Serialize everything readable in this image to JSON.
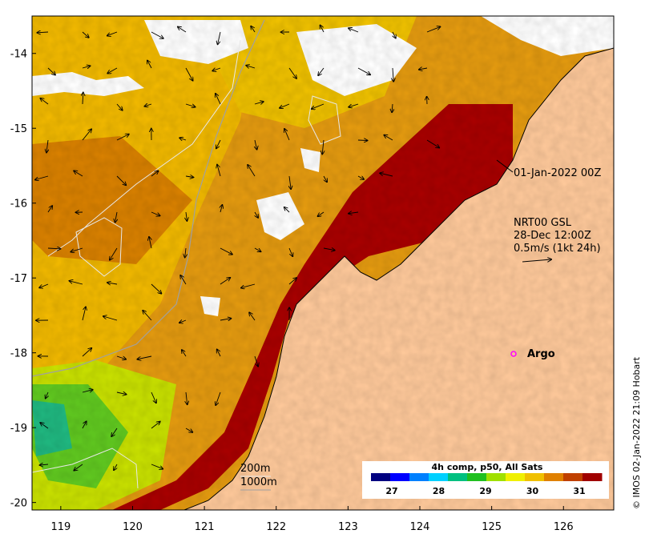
{
  "map": {
    "lon_ticks": [
      "119",
      "120",
      "121",
      "122",
      "123",
      "124",
      "125",
      "126"
    ],
    "lat_ticks": [
      "-14",
      "-15",
      "-16",
      "-17",
      "-18",
      "-19",
      "-20"
    ],
    "lon_range": [
      118.6,
      126.7
    ],
    "lat_range": [
      -20.1,
      -13.5
    ]
  },
  "annotations": {
    "date_label": "01-Jan-2022 00Z",
    "current_line1": "NRT00 GSL",
    "current_line2": "28-Dec 12:00Z",
    "current_line3": "0.5m/s (1kt 24h)",
    "argo_label": "Argo",
    "depth_200": "200m",
    "depth_1000": "1000m"
  },
  "colorbar": {
    "title": "4h comp, p50, All Sats",
    "ticks": [
      "27",
      "28",
      "29",
      "30",
      "31"
    ],
    "colors": [
      "#000080",
      "#0000ff",
      "#0080ff",
      "#00d0ff",
      "#00c080",
      "#20c020",
      "#a0e000",
      "#f0f000",
      "#f0c000",
      "#e08000",
      "#c04000",
      "#a00000"
    ]
  },
  "credit": "© IMOS 02-Jan-2022 21:09 Hobart",
  "colors": {
    "land": "#fdc89a",
    "hot": "#a00000",
    "warm": "#e08000",
    "mid": "#f0c000",
    "cool": "#60d020",
    "argo": "#ff00ff"
  }
}
